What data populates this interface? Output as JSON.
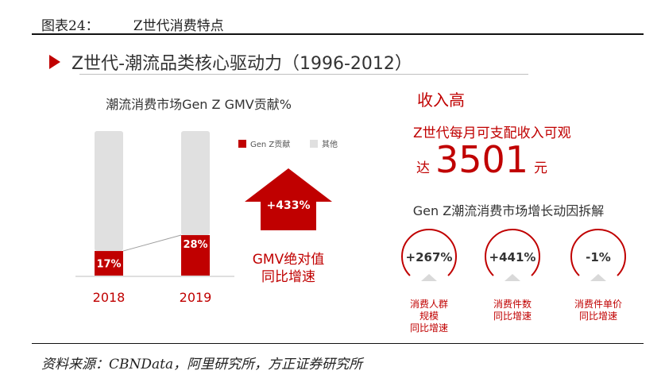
{
  "figure_title": "图表24：        Z世代消费特点",
  "section_title": "Z世代-潮流品类核心驱动力（1996-2012）",
  "source": "资料来源：CBNData，阿里研究所，方正证券研究所",
  "colors": {
    "accent": "#c00000",
    "bar_bg": "#e0e0e0",
    "circle_shadow": "#d9d9d9"
  },
  "chart_data": [
    {
      "type": "bar",
      "title": "潮流消费市场Gen Z GMV贡献%",
      "categories": [
        "2018",
        "2019"
      ],
      "series": [
        {
          "name": "Gen Z贡献",
          "values": [
            17,
            28
          ],
          "labels": [
            "17%",
            "28%"
          ]
        },
        {
          "name": "其他",
          "values": [
            83,
            72
          ]
        }
      ],
      "ylim": [
        0,
        100
      ],
      "legend": "top-right",
      "grid": false,
      "annotation": {
        "arrow_label": "+433%",
        "text": [
          "GMV绝对值",
          "同比增速"
        ]
      }
    }
  ],
  "income": {
    "heading": "收入高",
    "line1": "Z世代每月可支配收入可观",
    "prefix": "达",
    "amount": "3501",
    "unit": "元"
  },
  "breakdown": {
    "title": "Gen Z潮流消费市场增长动因拆解",
    "items": [
      {
        "value": "+267%",
        "label_lines": [
          "消费人群",
          "规模",
          "同比增速"
        ]
      },
      {
        "value": "+441%",
        "label_lines": [
          "消费件数",
          "同比增速"
        ]
      },
      {
        "value": "-1%",
        "label_lines": [
          "消费件单价",
          "同比增速"
        ]
      }
    ]
  }
}
